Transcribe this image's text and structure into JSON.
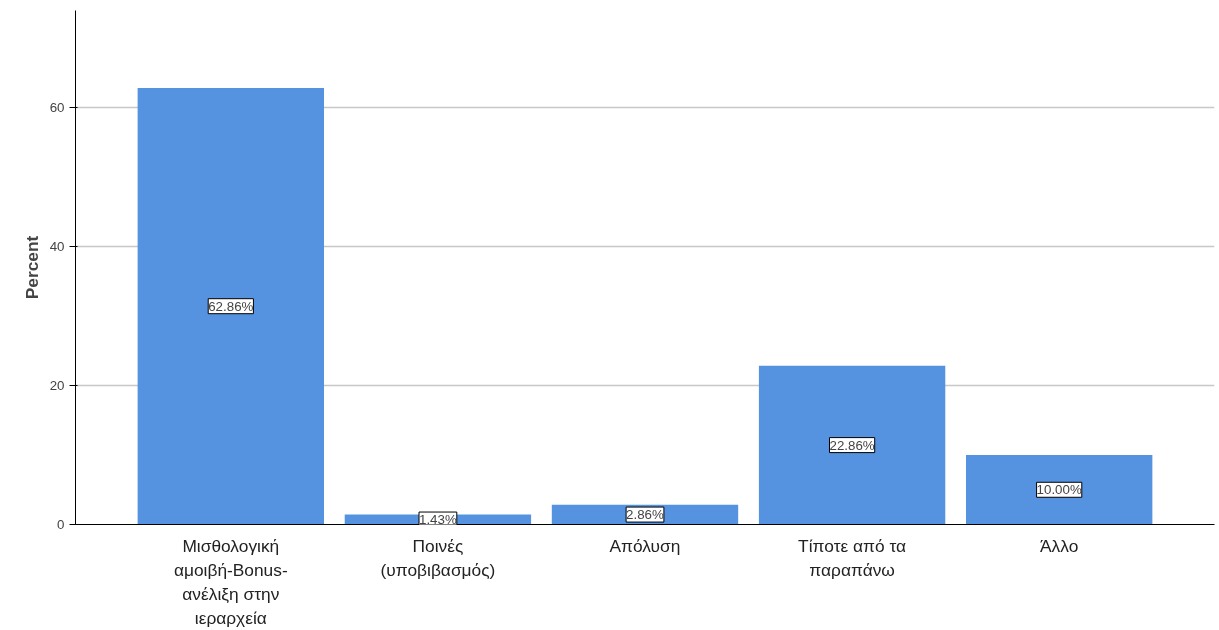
{
  "chart_data": {
    "type": "bar",
    "ylabel": "Percent",
    "categories": [
      "Μισθολογική\nαμοιβή-Bonus-\nανέλιξη στην\nιεραρχεία",
      "Ποινές\n(υποβιβασμός)",
      "Απόλυση",
      "Τίποτε από τα\nπαραπάνω",
      "Άλλο"
    ],
    "values": [
      62.86,
      1.43,
      2.86,
      22.86,
      10.0
    ],
    "value_labels": [
      "62.86%",
      "1.43%",
      "2.86%",
      "22.86%",
      "10.00%"
    ],
    "color": "#5593e0",
    "ylim": [
      0,
      74
    ],
    "yticks": [
      0,
      20,
      40,
      60
    ],
    "grid": "y"
  }
}
